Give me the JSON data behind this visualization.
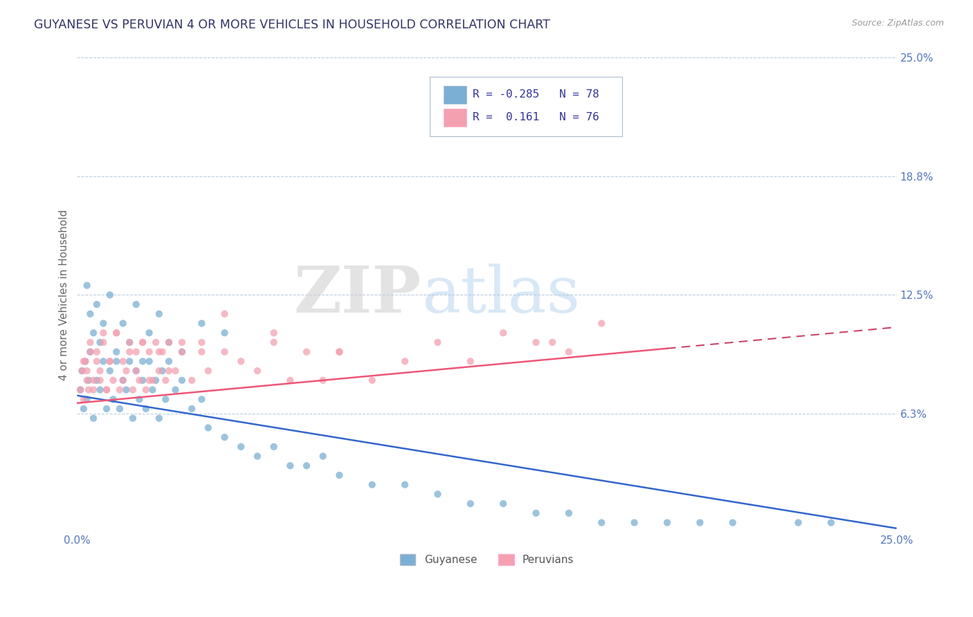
{
  "title": "GUYANESE VS PERUVIAN 4 OR MORE VEHICLES IN HOUSEHOLD CORRELATION CHART",
  "source_text": "Source: ZipAtlas.com",
  "ylabel": "4 or more Vehicles in Household",
  "watermark_zip": "ZIP",
  "watermark_atlas": "atlas",
  "xlim": [
    0.0,
    25.0
  ],
  "ylim": [
    0.0,
    25.0
  ],
  "xtick_vals": [
    0.0,
    25.0
  ],
  "xtick_labels": [
    "0.0%",
    "25.0%"
  ],
  "ytick_vals": [
    0.0,
    6.25,
    12.5,
    18.75,
    25.0
  ],
  "ytick_labels": [
    "",
    "6.3%",
    "12.5%",
    "18.8%",
    "25.0%"
  ],
  "blue_color": "#7BAFD4",
  "pink_color": "#F4A0B0",
  "blue_line_color": "#3366CC",
  "pink_line_color": "#EE5577",
  "pink_line_dash_color": "#CC4466",
  "title_color": "#333366",
  "axis_label_color": "#666666",
  "tick_color": "#5577BB",
  "legend_r_color": "#333399",
  "grid_color": "#BBCCDD",
  "background_color": "#FFFFFF",
  "series1_label": "Guyanese",
  "series2_label": "Peruvians",
  "series1_R": -0.285,
  "series1_N": 78,
  "series2_R": 0.161,
  "series2_N": 76,
  "blue_trend": [
    7.2,
    0.2
  ],
  "pink_trend_solid_end": 18.0,
  "pink_trend": [
    6.8,
    10.8
  ],
  "blue_scatter_x": [
    0.1,
    0.15,
    0.2,
    0.25,
    0.3,
    0.35,
    0.4,
    0.5,
    0.6,
    0.7,
    0.8,
    0.9,
    1.0,
    1.1,
    1.2,
    1.3,
    1.4,
    1.5,
    1.6,
    1.7,
    1.8,
    1.9,
    2.0,
    2.1,
    2.2,
    2.3,
    2.4,
    2.5,
    2.6,
    2.7,
    2.8,
    3.0,
    3.2,
    3.5,
    3.8,
    4.0,
    4.5,
    5.0,
    5.5,
    6.0,
    6.5,
    7.0,
    7.5,
    8.0,
    9.0,
    10.0,
    11.0,
    12.0,
    13.0,
    14.0,
    15.0,
    16.0,
    17.0,
    18.0,
    19.0,
    20.0,
    22.0,
    23.0,
    0.3,
    0.4,
    0.5,
    0.6,
    0.7,
    0.8,
    1.0,
    1.2,
    1.4,
    1.6,
    1.8,
    2.0,
    2.2,
    2.5,
    2.8,
    3.2,
    3.8,
    4.5
  ],
  "blue_scatter_y": [
    7.5,
    8.5,
    6.5,
    9.0,
    7.0,
    8.0,
    9.5,
    6.0,
    8.0,
    7.5,
    9.0,
    6.5,
    8.5,
    7.0,
    9.0,
    6.5,
    8.0,
    7.5,
    9.0,
    6.0,
    8.5,
    7.0,
    8.0,
    6.5,
    9.0,
    7.5,
    8.0,
    6.0,
    8.5,
    7.0,
    9.0,
    7.5,
    8.0,
    6.5,
    7.0,
    5.5,
    5.0,
    4.5,
    4.0,
    4.5,
    3.5,
    3.5,
    4.0,
    3.0,
    2.5,
    2.5,
    2.0,
    1.5,
    1.5,
    1.0,
    1.0,
    0.5,
    0.5,
    0.5,
    0.5,
    0.5,
    0.5,
    0.5,
    13.0,
    11.5,
    10.5,
    12.0,
    10.0,
    11.0,
    12.5,
    9.5,
    11.0,
    10.0,
    12.0,
    9.0,
    10.5,
    11.5,
    10.0,
    9.5,
    11.0,
    10.5
  ],
  "pink_scatter_x": [
    0.1,
    0.15,
    0.2,
    0.25,
    0.3,
    0.35,
    0.4,
    0.5,
    0.6,
    0.7,
    0.8,
    0.9,
    1.0,
    1.1,
    1.2,
    1.3,
    1.4,
    1.5,
    1.6,
    1.7,
    1.8,
    1.9,
    2.0,
    2.1,
    2.2,
    2.3,
    2.4,
    2.5,
    2.6,
    2.7,
    2.8,
    3.0,
    3.2,
    3.5,
    3.8,
    4.0,
    4.5,
    5.0,
    5.5,
    6.0,
    6.5,
    7.0,
    7.5,
    8.0,
    9.0,
    10.0,
    11.0,
    12.0,
    13.0,
    14.0,
    15.0,
    16.0,
    0.2,
    0.3,
    0.4,
    0.5,
    0.6,
    0.7,
    0.8,
    0.9,
    1.0,
    1.2,
    1.4,
    1.6,
    1.8,
    2.0,
    2.2,
    2.5,
    2.8,
    3.2,
    3.8,
    4.5,
    6.0,
    8.0,
    14.5,
    15.5
  ],
  "pink_scatter_y": [
    7.5,
    8.5,
    7.0,
    9.0,
    8.0,
    7.5,
    9.5,
    8.0,
    9.0,
    8.5,
    10.0,
    7.5,
    9.0,
    8.0,
    10.5,
    7.5,
    9.0,
    8.5,
    10.0,
    7.5,
    9.5,
    8.0,
    10.0,
    7.5,
    9.5,
    8.0,
    10.0,
    8.5,
    9.5,
    8.0,
    10.0,
    8.5,
    9.5,
    8.0,
    10.0,
    8.5,
    9.5,
    9.0,
    8.5,
    10.0,
    8.0,
    9.5,
    8.0,
    9.5,
    8.0,
    9.0,
    10.0,
    9.0,
    10.5,
    10.0,
    9.5,
    11.0,
    9.0,
    8.5,
    10.0,
    7.5,
    9.5,
    8.0,
    10.5,
    7.5,
    9.0,
    10.5,
    8.0,
    9.5,
    8.5,
    10.0,
    8.0,
    9.5,
    8.5,
    10.0,
    9.5,
    11.5,
    10.5,
    9.5,
    10.0,
    21.5
  ]
}
